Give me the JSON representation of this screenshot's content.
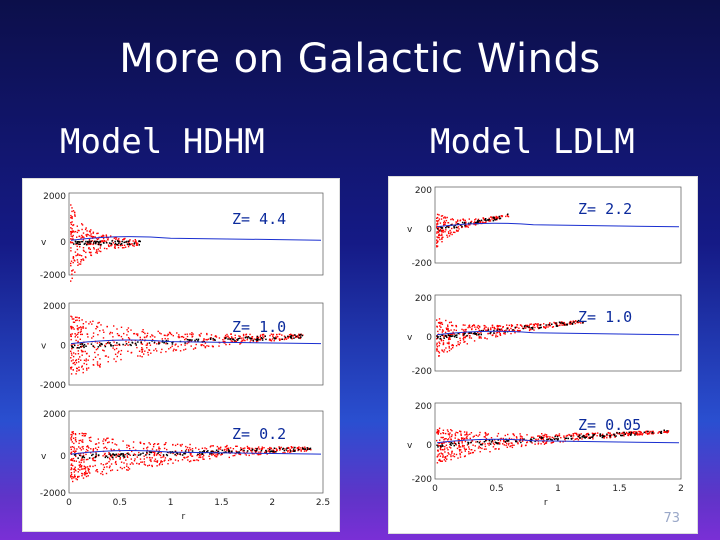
{
  "slide": {
    "title": "More on Galactic Winds",
    "page_number": "73"
  },
  "left": {
    "model_label": "Model HDHM",
    "z_labels": [
      "Z= 4.4",
      "Z= 1.0",
      "Z= 0.2"
    ],
    "x_axis_label": "r",
    "y_axis_label": "v",
    "x_ticks": [
      "0",
      "0.5",
      "1",
      "1.5",
      "2",
      "2.5"
    ],
    "y_ticks": [
      "2000",
      "0",
      "-2000"
    ]
  },
  "right": {
    "model_label": "Model LDLM",
    "z_labels": [
      "Z= 2.2",
      "Z= 1.0",
      "Z= 0.05"
    ],
    "x_axis_label": "r",
    "y_axis_label": "v",
    "x_ticks": [
      "0",
      "0.5",
      "1",
      "1.5",
      "2"
    ],
    "y_ticks": [
      "200",
      "0",
      "-200"
    ]
  },
  "colors": {
    "background": "#151a86",
    "scatter_red": "#ff0000",
    "curve_blue": "#1a2fd0",
    "text_blue": "#0b2a9c"
  }
}
